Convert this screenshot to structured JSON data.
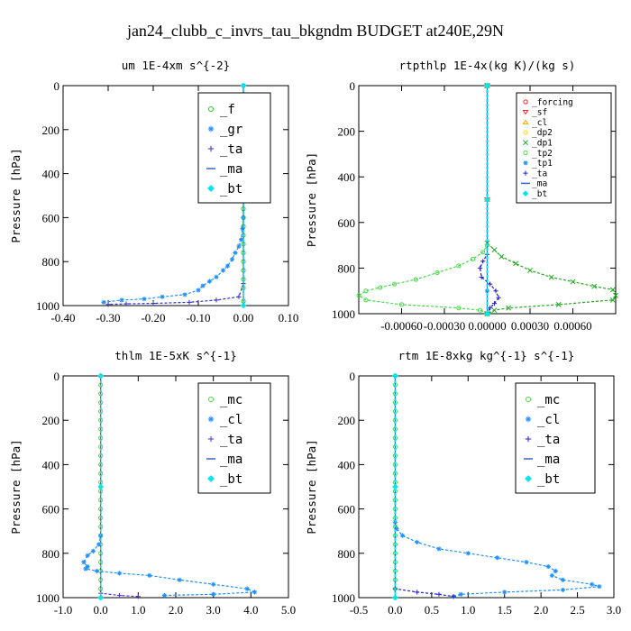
{
  "title": "jan24_clubb_c_invrs_tau_bkgndm  BUDGET at240E,29N",
  "chart_data": [
    {
      "type": "line",
      "title": "um  1E-4xm s^{-2}",
      "ylabel": "Pressure [hPa]",
      "xlim": [
        -0.4,
        0.1
      ],
      "ylim": [
        0,
        1000
      ],
      "xticks": [
        -0.4,
        -0.3,
        -0.2,
        -0.1,
        0.0,
        0.1
      ],
      "xtick_labels": [
        "-0.40",
        "-0.30",
        "-0.20",
        "-0.10",
        "0.00",
        "0.10"
      ],
      "yticks": [
        0,
        200,
        400,
        600,
        800,
        1000
      ],
      "ytick_labels": [
        "0",
        "200",
        "400",
        "600",
        "800",
        "1000"
      ],
      "legend_position": "top-right",
      "series": [
        {
          "name": "_f",
          "color": "#22cc22",
          "marker": "o",
          "x": [
            0,
            0,
            0,
            0,
            0,
            0,
            0,
            0,
            0,
            0,
            0,
            0,
            0,
            0,
            0,
            0,
            0,
            0,
            0,
            0,
            0,
            0,
            0,
            0,
            0
          ],
          "y": [
            0,
            40,
            80,
            120,
            160,
            200,
            240,
            280,
            320,
            360,
            400,
            440,
            480,
            520,
            560,
            600,
            640,
            680,
            720,
            760,
            800,
            840,
            880,
            920,
            980
          ]
        },
        {
          "name": "_gr",
          "color": "#1e90ff",
          "marker": "*",
          "x": [
            0,
            0,
            0,
            0,
            -0.002,
            -0.005,
            -0.01,
            -0.018,
            -0.025,
            -0.035,
            -0.045,
            -0.06,
            -0.075,
            -0.09,
            -0.1,
            -0.13,
            -0.18,
            -0.22,
            -0.27,
            -0.31
          ],
          "y": [
            0,
            200,
            400,
            600,
            650,
            700,
            730,
            760,
            790,
            820,
            840,
            870,
            890,
            910,
            930,
            950,
            960,
            970,
            975,
            985
          ]
        },
        {
          "name": "_ta",
          "color": "#3333cc",
          "marker": "+",
          "x": [
            0,
            0,
            -0.01,
            -0.06,
            -0.12,
            -0.2,
            -0.26,
            -0.3
          ],
          "y": [
            0,
            900,
            960,
            975,
            985,
            990,
            992,
            995
          ]
        },
        {
          "name": "_ma",
          "color": "#3366cc",
          "marker": "-",
          "x": [
            0,
            0,
            0
          ],
          "y": [
            0,
            500,
            1000
          ]
        },
        {
          "name": "_bt",
          "color": "#00e5ee",
          "marker": "d",
          "x": [
            0,
            0,
            0
          ],
          "y": [
            0,
            500,
            1000
          ]
        }
      ]
    },
    {
      "type": "line",
      "title": "rtpthlp  1E-4x(kg K)/(kg s)",
      "ylabel": "Pressure [hPa]",
      "xlim": [
        -0.0009,
        0.0009
      ],
      "ylim": [
        0,
        1000
      ],
      "xticks": [
        -0.0006,
        -0.0003,
        0.0,
        0.0003,
        0.0006
      ],
      "xtick_labels": [
        "-0.00060",
        "-0.00030",
        "0.00000",
        "0.00030",
        "0.00060"
      ],
      "yticks": [
        0,
        200,
        400,
        600,
        800,
        1000
      ],
      "ytick_labels": [
        "0",
        "200",
        "400",
        "600",
        "800",
        "1000"
      ],
      "legend_position": "top-right",
      "series": [
        {
          "name": "_forcing",
          "color": "#ff2020",
          "marker": "o",
          "x": [
            0,
            0,
            0
          ],
          "y": [
            0,
            500,
            1000
          ]
        },
        {
          "name": "_sf",
          "color": "#ff2020",
          "marker": "v",
          "x": [
            0,
            0,
            0
          ],
          "y": [
            0,
            500,
            1000
          ]
        },
        {
          "name": "_cl",
          "color": "#ffa500",
          "marker": "^",
          "x": [
            0,
            0,
            0
          ],
          "y": [
            0,
            500,
            1000
          ]
        },
        {
          "name": "_dp2",
          "color": "#ffd700",
          "marker": "o",
          "x": [
            0,
            0,
            0
          ],
          "y": [
            0,
            500,
            1000
          ]
        },
        {
          "name": "_dp1",
          "color": "#22aa22",
          "marker": "x",
          "x": [
            0,
            0,
            5e-05,
            0.0001,
            0.0002,
            0.0003,
            0.00045,
            0.0006,
            0.00075,
            0.00088,
            0.0009,
            0.00088,
            0.0005,
            0.00015,
            5e-05,
            0
          ],
          "y": [
            0,
            690,
            720,
            750,
            780,
            810,
            840,
            860,
            880,
            895,
            920,
            940,
            960,
            975,
            985,
            1000
          ]
        },
        {
          "name": "_tp2",
          "color": "#44dd44",
          "marker": "o",
          "x": [
            0,
            0,
            -3e-05,
            -0.0001,
            -0.0002,
            -0.00035,
            -0.0005,
            -0.00065,
            -0.00075,
            -0.00085,
            -0.0009,
            -0.00085,
            -0.0006,
            -0.0002,
            -5e-05,
            0
          ],
          "y": [
            0,
            700,
            730,
            760,
            790,
            820,
            850,
            870,
            885,
            900,
            920,
            940,
            960,
            975,
            985,
            1000
          ]
        },
        {
          "name": "_tp1",
          "color": "#1e90ff",
          "marker": "*",
          "x": [
            0,
            0,
            0,
            0
          ],
          "y": [
            0,
            500,
            900,
            1000
          ]
        },
        {
          "name": "_ta",
          "color": "#2222cc",
          "marker": "+",
          "x": [
            0,
            0,
            -3e-05,
            -5e-05,
            -4e-05,
            2e-05,
            6e-05,
            8e-05,
            5e-05,
            2e-05,
            0
          ],
          "y": [
            0,
            740,
            770,
            800,
            840,
            870,
            900,
            930,
            955,
            975,
            1000
          ]
        },
        {
          "name": "_ma",
          "color": "#3366cc",
          "marker": "-",
          "x": [
            0,
            0,
            0
          ],
          "y": [
            0,
            500,
            1000
          ]
        },
        {
          "name": "_bt",
          "color": "#00e5ee",
          "marker": "d",
          "x": [
            0,
            0,
            0
          ],
          "y": [
            0,
            500,
            1000
          ]
        }
      ]
    },
    {
      "type": "line",
      "title": "thlm  1E-5xK s^{-1}",
      "ylabel": "Pressure [hPa]",
      "xlim": [
        -1.0,
        5.0
      ],
      "ylim": [
        0,
        1000
      ],
      "xticks": [
        -1.0,
        0.0,
        1.0,
        2.0,
        3.0,
        4.0,
        5.0
      ],
      "xtick_labels": [
        "-1.0",
        "0.0",
        "1.0",
        "2.0",
        "3.0",
        "4.0",
        "5.0"
      ],
      "yticks": [
        0,
        200,
        400,
        600,
        800,
        1000
      ],
      "ytick_labels": [
        "0",
        "200",
        "400",
        "600",
        "800",
        "1000"
      ],
      "legend_position": "top-right",
      "series": [
        {
          "name": "_mc",
          "color": "#44dd44",
          "marker": "o",
          "x": [
            0,
            0,
            0,
            0,
            0,
            0,
            0,
            0,
            0,
            0,
            0,
            0,
            0,
            0,
            0,
            0,
            0,
            0,
            0,
            0,
            0,
            0,
            0,
            0,
            0,
            0
          ],
          "y": [
            0,
            40,
            80,
            120,
            160,
            200,
            240,
            280,
            320,
            360,
            400,
            440,
            480,
            520,
            560,
            600,
            640,
            680,
            720,
            760,
            800,
            840,
            880,
            920,
            960,
            1000
          ]
        },
        {
          "name": "_cl",
          "color": "#1e90ff",
          "marker": "*",
          "x": [
            0,
            0,
            -0.05,
            -0.2,
            -0.35,
            -0.45,
            -0.35,
            -0.4,
            -0.1,
            0.5,
            1.3,
            2.1,
            3.0,
            3.9,
            4.1,
            3.0,
            1.7
          ],
          "y": [
            0,
            720,
            760,
            790,
            810,
            840,
            860,
            870,
            880,
            890,
            900,
            920,
            940,
            960,
            975,
            985,
            990
          ]
        },
        {
          "name": "_ta",
          "color": "#5533cc",
          "marker": "+",
          "x": [
            0,
            0,
            0.5,
            1.0
          ],
          "y": [
            0,
            980,
            990,
            995
          ]
        },
        {
          "name": "_ma",
          "color": "#3366cc",
          "marker": "-",
          "x": [
            0,
            0,
            0
          ],
          "y": [
            0,
            500,
            1000
          ]
        },
        {
          "name": "_bt",
          "color": "#00e5ee",
          "marker": "d",
          "x": [
            0,
            0,
            0
          ],
          "y": [
            0,
            500,
            1000
          ]
        }
      ]
    },
    {
      "type": "line",
      "title": "rtm  1E-8xkg kg^{-1} s^{-1}",
      "ylabel": "Pressure [hPa]",
      "xlim": [
        -0.5,
        3.0
      ],
      "ylim": [
        0,
        1000
      ],
      "xticks": [
        -0.5,
        0.0,
        0.5,
        1.0,
        1.5,
        2.0,
        2.5,
        3.0
      ],
      "xtick_labels": [
        "-0.5",
        "0.0",
        "0.5",
        "1.0",
        "1.5",
        "2.0",
        "2.5",
        "3.0"
      ],
      "yticks": [
        0,
        200,
        400,
        600,
        800,
        1000
      ],
      "ytick_labels": [
        "0",
        "200",
        "400",
        "600",
        "800",
        "1000"
      ],
      "legend_position": "top-right",
      "series": [
        {
          "name": "_mc",
          "color": "#44dd44",
          "marker": "o",
          "x": [
            0,
            0,
            0,
            0,
            0,
            0,
            0,
            0,
            0,
            0,
            0,
            0,
            0,
            0,
            0,
            0,
            0,
            0,
            0,
            0,
            0,
            0,
            0,
            0,
            0,
            0
          ],
          "y": [
            0,
            40,
            80,
            120,
            160,
            200,
            240,
            280,
            320,
            360,
            400,
            440,
            480,
            520,
            560,
            600,
            640,
            680,
            720,
            760,
            800,
            840,
            880,
            920,
            960,
            1000
          ]
        },
        {
          "name": "_cl",
          "color": "#1e90ff",
          "marker": "*",
          "x": [
            0,
            0,
            0.02,
            0.1,
            0.3,
            0.6,
            1.0,
            1.4,
            1.8,
            2.1,
            2.2,
            2.15,
            2.3,
            2.7,
            2.8,
            2.3,
            1.5,
            0.9,
            0.8
          ],
          "y": [
            0,
            660,
            690,
            720,
            750,
            780,
            800,
            820,
            840,
            860,
            880,
            900,
            920,
            940,
            950,
            965,
            975,
            985,
            995
          ]
        },
        {
          "name": "_ta",
          "color": "#2222cc",
          "marker": "+",
          "x": [
            0,
            0,
            0.3,
            0.6,
            0.8
          ],
          "y": [
            0,
            960,
            975,
            985,
            995
          ]
        },
        {
          "name": "_ma",
          "color": "#3366cc",
          "marker": "-",
          "x": [
            0,
            0,
            0
          ],
          "y": [
            0,
            500,
            1000
          ]
        },
        {
          "name": "_bt",
          "color": "#00e5ee",
          "marker": "d",
          "x": [
            0,
            0,
            0
          ],
          "y": [
            0,
            500,
            1000
          ]
        }
      ]
    }
  ]
}
